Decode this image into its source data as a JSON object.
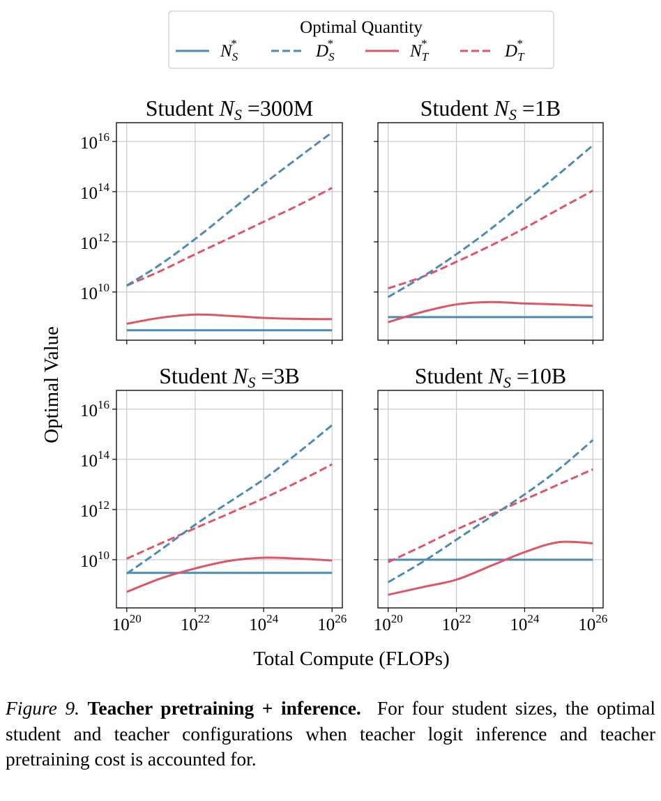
{
  "chart_data": {
    "type": "line",
    "xscale": "log",
    "yscale": "log",
    "grid": true,
    "xlim": [
      5e+19,
      2e+26
    ],
    "ylim": [
      120000000.0,
      5.6e+16
    ],
    "xlabel": "Total Compute (FLOPs)",
    "ylabel": "Optimal Value",
    "x_tick_exponents": [
      "20",
      "22",
      "24",
      "26"
    ],
    "y_tick_exponents": [
      "10",
      "12",
      "14",
      "16"
    ],
    "tick_base": "10",
    "legend": {
      "title": "Optimal Quantity",
      "placement": "top-center",
      "entries": [
        {
          "key": "NS",
          "symbol": "N",
          "sub": "S",
          "sup": "*",
          "color": "#4c8bb8",
          "style": "solid"
        },
        {
          "key": "DS",
          "symbol": "D",
          "sub": "S",
          "sup": "*",
          "color": "#4c8bb8",
          "style": "dashed"
        },
        {
          "key": "NT",
          "symbol": "N",
          "sub": "T",
          "sup": "*",
          "color": "#e05566",
          "style": "solid"
        },
        {
          "key": "DT",
          "symbol": "D",
          "sub": "T",
          "sup": "*",
          "color": "#e05566",
          "style": "dashed"
        }
      ]
    },
    "x": [
      1e+20,
      1e+21,
      1e+22,
      1e+23,
      1e+24,
      1e+25,
      1e+26
    ],
    "panels": [
      {
        "title_prefix": "Student ",
        "title_symbol": "N",
        "title_sub": "S",
        "title_suffix": " =300M",
        "series": {
          "NS": [
            300000000.0,
            300000000.0,
            300000000.0,
            300000000.0,
            300000000.0,
            300000000.0,
            300000000.0
          ],
          "DS": [
            18000000000.0,
            130000000000.0,
            1300000000000.0,
            16000000000000.0,
            200000000000000.0,
            2200000000000000.0,
            2.3e+16
          ],
          "NT": [
            540000000.0,
            950000000.0,
            1260000000.0,
            1120000000.0,
            930000000.0,
            850000000.0,
            830000000.0
          ],
          "DT": [
            18000000000.0,
            70000000000.0,
            320000000000.0,
            1400000000000.0,
            6300000000000.0,
            28000000000000.0,
            140000000000000.0
          ]
        }
      },
      {
        "title_prefix": "Student ",
        "title_symbol": "N",
        "title_sub": "S",
        "title_suffix": " =1B",
        "series": {
          "NS": [
            1000000000.0,
            1000000000.0,
            1000000000.0,
            1000000000.0,
            1000000000.0,
            1000000000.0,
            1000000000.0
          ],
          "DS": [
            6300000000.0,
            40000000000.0,
            320000000000.0,
            3200000000000.0,
            40000000000000.0,
            500000000000000.0,
            7000000000000000.0
          ],
          "NT": [
            630000000.0,
            1600000000.0,
            3200000000.0,
            4000000000.0,
            3500000000.0,
            3200000000.0,
            2800000000.0
          ],
          "DT": [
            14000000000.0,
            40000000000.0,
            160000000000.0,
            700000000000.0,
            3500000000000.0,
            20000000000000.0,
            110000000000000.0
          ]
        }
      },
      {
        "title_prefix": "Student ",
        "title_symbol": "N",
        "title_sub": "S",
        "title_suffix": " =3B",
        "series": {
          "NS": [
            3000000000.0,
            3000000000.0,
            3000000000.0,
            3000000000.0,
            3000000000.0,
            3000000000.0,
            3000000000.0
          ],
          "DS": [
            2800000000.0,
            25000000000.0,
            250000000000.0,
            2000000000000.0,
            16000000000000.0,
            180000000000000.0,
            2300000000000000.0
          ],
          "NT": [
            520000000.0,
            1800000000.0,
            4500000000.0,
            9000000000.0,
            12000000000.0,
            11000000000.0,
            9300000000.0
          ],
          "DT": [
            11000000000.0,
            45000000000.0,
            180000000000.0,
            700000000000.0,
            2800000000000.0,
            12600000000000.0,
            63000000000000.0
          ]
        }
      },
      {
        "title_prefix": "Student ",
        "title_symbol": "N",
        "title_sub": "S",
        "title_suffix": " =10B",
        "series": {
          "NS": [
            10000000000.0,
            10000000000.0,
            10000000000.0,
            10000000000.0,
            10000000000.0,
            10000000000.0,
            10000000000.0
          ],
          "DS": [
            1260000000.0,
            8000000000.0,
            63000000000.0,
            500000000000.0,
            4000000000000.0,
            40000000000000.0,
            590000000000000.0
          ],
          "NT": [
            400000000.0,
            800000000.0,
            1600000000.0,
            5600000000.0,
            20000000000.0,
            50000000000.0,
            45000000000.0
          ],
          "DT": [
            8000000000.0,
            35000000000.0,
            160000000000.0,
            630000000000.0,
            2500000000000.0,
            10000000000000.0,
            40000000000000.0
          ]
        }
      }
    ]
  },
  "caption": {
    "label": "Figure 9.",
    "title": "Teacher pretraining + inference.",
    "text": "For four student sizes, the optimal student and teacher configurations when teacher logit inference and teacher pretraining cost is accounted for."
  }
}
